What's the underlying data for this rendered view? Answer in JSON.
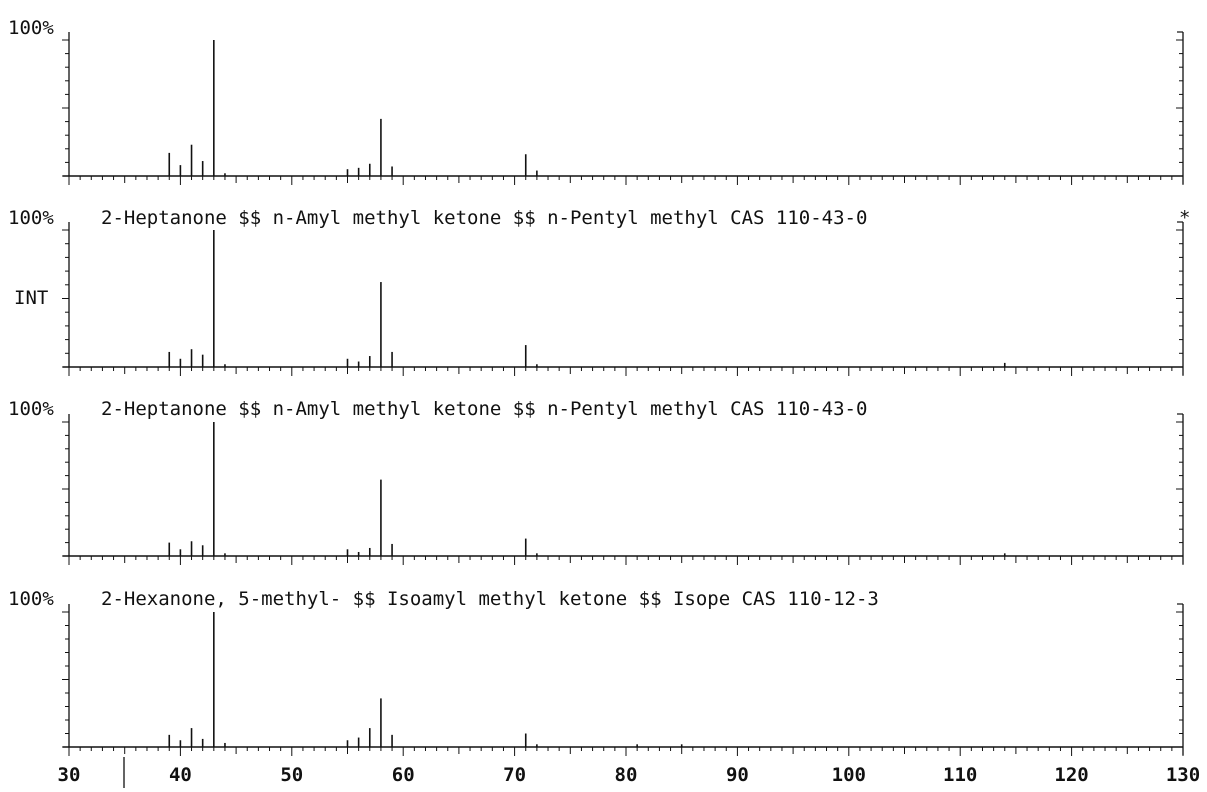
{
  "chart_data": {
    "type": "bar",
    "x_axis": {
      "range": [
        30,
        130
      ],
      "tick_labels": [
        "30",
        "40",
        "50",
        "60",
        "70",
        "80",
        "90",
        "100",
        "110",
        "120",
        "130"
      ]
    },
    "y_axis": {
      "range": [
        0,
        100
      ],
      "unit": "%"
    },
    "y_axis_label": "INT",
    "panels": [
      {
        "top_label": "100%",
        "title": "",
        "peaks": [
          [
            39,
            17
          ],
          [
            40,
            8
          ],
          [
            41,
            23
          ],
          [
            42,
            11
          ],
          [
            43,
            100
          ],
          [
            44,
            2
          ],
          [
            55,
            5
          ],
          [
            56,
            6
          ],
          [
            57,
            9
          ],
          [
            58,
            42
          ],
          [
            59,
            7
          ],
          [
            71,
            16
          ],
          [
            72,
            4
          ]
        ]
      },
      {
        "top_label": "100%",
        "title": "2-Heptanone $$ n-Amyl methyl ketone $$ n-Pentyl methyl  CAS 110-43-0",
        "marker": "*",
        "peaks": [
          [
            39,
            11
          ],
          [
            40,
            6
          ],
          [
            41,
            13
          ],
          [
            42,
            9
          ],
          [
            43,
            100
          ],
          [
            44,
            2
          ],
          [
            55,
            6
          ],
          [
            56,
            4
          ],
          [
            57,
            8
          ],
          [
            58,
            62
          ],
          [
            59,
            11
          ],
          [
            71,
            16
          ],
          [
            72,
            2
          ],
          [
            114,
            3
          ]
        ]
      },
      {
        "top_label": "100%",
        "title": "2-Heptanone $$ n-Amyl methyl ketone $$ n-Pentyl methyl  CAS 110-43-0",
        "peaks": [
          [
            39,
            10
          ],
          [
            40,
            5
          ],
          [
            41,
            11
          ],
          [
            42,
            8
          ],
          [
            43,
            100
          ],
          [
            44,
            2
          ],
          [
            55,
            5
          ],
          [
            56,
            3
          ],
          [
            57,
            6
          ],
          [
            58,
            57
          ],
          [
            59,
            9
          ],
          [
            71,
            13
          ],
          [
            72,
            2
          ],
          [
            114,
            2
          ]
        ]
      },
      {
        "top_label": "100%",
        "title": "2-Hexanone, 5-methyl- $$ Isoamyl methyl ketone $$ Isope CAS 110-12-3",
        "peaks": [
          [
            39,
            9
          ],
          [
            40,
            5
          ],
          [
            41,
            14
          ],
          [
            42,
            6
          ],
          [
            43,
            100
          ],
          [
            44,
            3
          ],
          [
            55,
            5
          ],
          [
            56,
            7
          ],
          [
            57,
            14
          ],
          [
            58,
            36
          ],
          [
            59,
            9
          ],
          [
            71,
            10
          ],
          [
            72,
            2
          ],
          [
            81,
            2
          ],
          [
            85,
            2
          ]
        ]
      }
    ]
  }
}
